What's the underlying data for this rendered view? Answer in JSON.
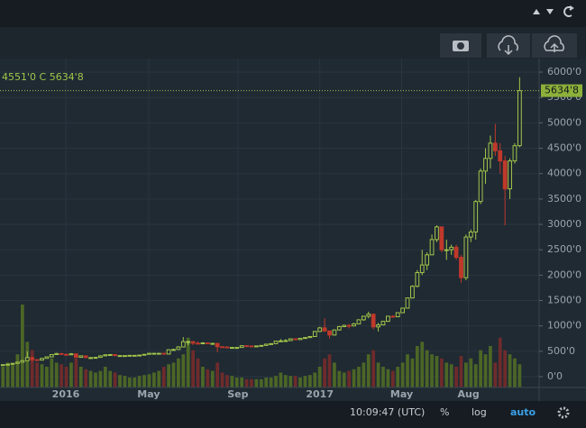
{
  "chart_data": {
    "type": "candlestick",
    "ohlc_text": "4551'0 C 5634'8",
    "last_price": {
      "value": 5634.8,
      "label": "5634'8"
    },
    "xlim": [
      -0.6,
      110
    ],
    "ylim": [
      -213,
      6267
    ],
    "xticks": [
      {
        "value": 12.9,
        "label": "2016"
      },
      {
        "value": 29.9,
        "label": "May"
      },
      {
        "value": 48.2,
        "label": "Sep"
      },
      {
        "value": 65.0,
        "label": "2017"
      },
      {
        "value": 81.8,
        "label": "May"
      },
      {
        "value": 95.5,
        "label": "Aug"
      }
    ],
    "yticks": [
      {
        "value": 0,
        "label": "0'0"
      },
      {
        "value": 500,
        "label": "500'0"
      },
      {
        "value": 1000,
        "label": "1000'0"
      },
      {
        "value": 1500,
        "label": "1500'0"
      },
      {
        "value": 2000,
        "label": "2000'0"
      },
      {
        "value": 2500,
        "label": "2500'0"
      },
      {
        "value": 3000,
        "label": "3000'0"
      },
      {
        "value": 3500,
        "label": "3500'0"
      },
      {
        "value": 4000,
        "label": "4000'0"
      },
      {
        "value": 4500,
        "label": "4500'0"
      },
      {
        "value": 5000,
        "label": "5000'0"
      },
      {
        "value": 5500,
        "label": "5500'0"
      },
      {
        "value": 6000,
        "label": "6000'0"
      }
    ],
    "grid": true,
    "up_color": "#a3c64a",
    "down_color": "#c0392b",
    "up_volume_color": "#4b6626",
    "down_volume_color": "#6e2b2b",
    "open": [
      230,
      236,
      245,
      262,
      285,
      315,
      375,
      335,
      325,
      360,
      390,
      435,
      455,
      440,
      430,
      450,
      380,
      410,
      375,
      375,
      380,
      410,
      430,
      435,
      415,
      415,
      415,
      420,
      420,
      425,
      440,
      460,
      460,
      460,
      445,
      530,
      535,
      585,
      690,
      690,
      660,
      650,
      665,
      655,
      655,
      590,
      585,
      575,
      575,
      575,
      610,
      605,
      600,
      605,
      615,
      640,
      650,
      700,
      705,
      710,
      745,
      730,
      755,
      770,
      790,
      890,
      960,
      900,
      820,
      920,
      985,
      1010,
      1000,
      1040,
      1120,
      1190,
      1230,
      980,
      1020,
      1090,
      1190,
      1180,
      1260,
      1350,
      1550,
      1780,
      2050,
      2200,
      2400,
      2700,
      2950,
      2500,
      2500,
      2550,
      2350,
      1950,
      2750,
      2850,
      3450,
      4050,
      4300,
      4600,
      4450,
      4250,
      3700,
      4250,
      4551
    ],
    "high": [
      240,
      250,
      268,
      295,
      330,
      500,
      390,
      340,
      365,
      400,
      440,
      470,
      460,
      445,
      465,
      455,
      415,
      412,
      385,
      385,
      420,
      440,
      445,
      438,
      420,
      420,
      425,
      425,
      428,
      445,
      465,
      467,
      465,
      462,
      540,
      550,
      600,
      780,
      710,
      700,
      690,
      680,
      670,
      665,
      660,
      595,
      590,
      585,
      580,
      615,
      615,
      610,
      610,
      620,
      645,
      655,
      705,
      740,
      740,
      750,
      750,
      760,
      775,
      795,
      900,
      980,
      1150,
      910,
      930,
      1000,
      1025,
      1040,
      1060,
      1130,
      1200,
      1280,
      1240,
      1060,
      1100,
      1200,
      1210,
      1270,
      1360,
      1560,
      1800,
      2100,
      2500,
      2450,
      2800,
      2980,
      2960,
      2700,
      2600,
      2600,
      2400,
      2800,
      2900,
      3480,
      4100,
      4500,
      4750,
      4980,
      4600,
      4350,
      4300,
      4600,
      5900
    ],
    "low": [
      225,
      232,
      243,
      260,
      280,
      310,
      300,
      315,
      322,
      355,
      388,
      430,
      430,
      415,
      425,
      370,
      375,
      365,
      365,
      370,
      378,
      405,
      425,
      405,
      410,
      410,
      410,
      415,
      418,
      422,
      438,
      450,
      450,
      440,
      442,
      520,
      530,
      580,
      620,
      620,
      640,
      640,
      645,
      640,
      480,
      575,
      570,
      565,
      565,
      570,
      600,
      595,
      595,
      600,
      610,
      635,
      645,
      690,
      690,
      700,
      720,
      725,
      750,
      765,
      785,
      880,
      880,
      750,
      810,
      910,
      975,
      950,
      990,
      1030,
      1100,
      1150,
      930,
      890,
      1010,
      1080,
      1160,
      1170,
      1250,
      1340,
      1540,
      1760,
      2000,
      2100,
      2400,
      2650,
      2450,
      2300,
      2400,
      2300,
      1850,
      1900,
      2650,
      2700,
      3400,
      3800,
      4100,
      4350,
      4000,
      2980,
      3500,
      4200,
      4520
    ],
    "close": [
      236,
      245,
      262,
      285,
      315,
      375,
      335,
      325,
      360,
      390,
      435,
      455,
      440,
      430,
      450,
      380,
      410,
      375,
      375,
      380,
      410,
      430,
      435,
      415,
      415,
      415,
      420,
      420,
      425,
      440,
      460,
      460,
      460,
      445,
      530,
      535,
      585,
      690,
      690,
      660,
      650,
      665,
      655,
      655,
      590,
      585,
      575,
      575,
      575,
      610,
      605,
      600,
      605,
      615,
      640,
      650,
      700,
      705,
      710,
      745,
      730,
      755,
      770,
      790,
      890,
      960,
      900,
      820,
      920,
      985,
      1010,
      1000,
      1040,
      1120,
      1190,
      1230,
      980,
      1020,
      1090,
      1190,
      1180,
      1260,
      1350,
      1550,
      1780,
      2050,
      2200,
      2400,
      2700,
      2950,
      2500,
      2500,
      2550,
      2350,
      1950,
      2750,
      2850,
      3450,
      4050,
      4300,
      4600,
      4450,
      4250,
      3700,
      4250,
      4551,
      5634.8
    ],
    "volume": [
      25,
      30,
      28,
      40,
      100,
      55,
      45,
      30,
      28,
      25,
      35,
      30,
      28,
      25,
      30,
      35,
      25,
      22,
      20,
      18,
      20,
      25,
      20,
      18,
      15,
      14,
      12,
      12,
      14,
      15,
      16,
      18,
      20,
      25,
      28,
      30,
      35,
      40,
      60,
      45,
      35,
      25,
      22,
      20,
      30,
      18,
      15,
      14,
      12,
      12,
      10,
      10,
      10,
      10,
      12,
      12,
      14,
      18,
      15,
      14,
      14,
      12,
      14,
      15,
      18,
      25,
      35,
      40,
      30,
      20,
      18,
      20,
      22,
      25,
      30,
      40,
      45,
      30,
      25,
      22,
      20,
      25,
      30,
      40,
      35,
      50,
      55,
      45,
      40,
      38,
      35,
      30,
      28,
      25,
      38,
      30,
      35,
      28,
      45,
      40,
      50,
      30,
      60,
      45,
      40,
      35,
      28
    ]
  },
  "toolbar": {
    "time": "10:09:47 (UTC)",
    "percent": "%",
    "log": "log",
    "auto": "auto"
  }
}
